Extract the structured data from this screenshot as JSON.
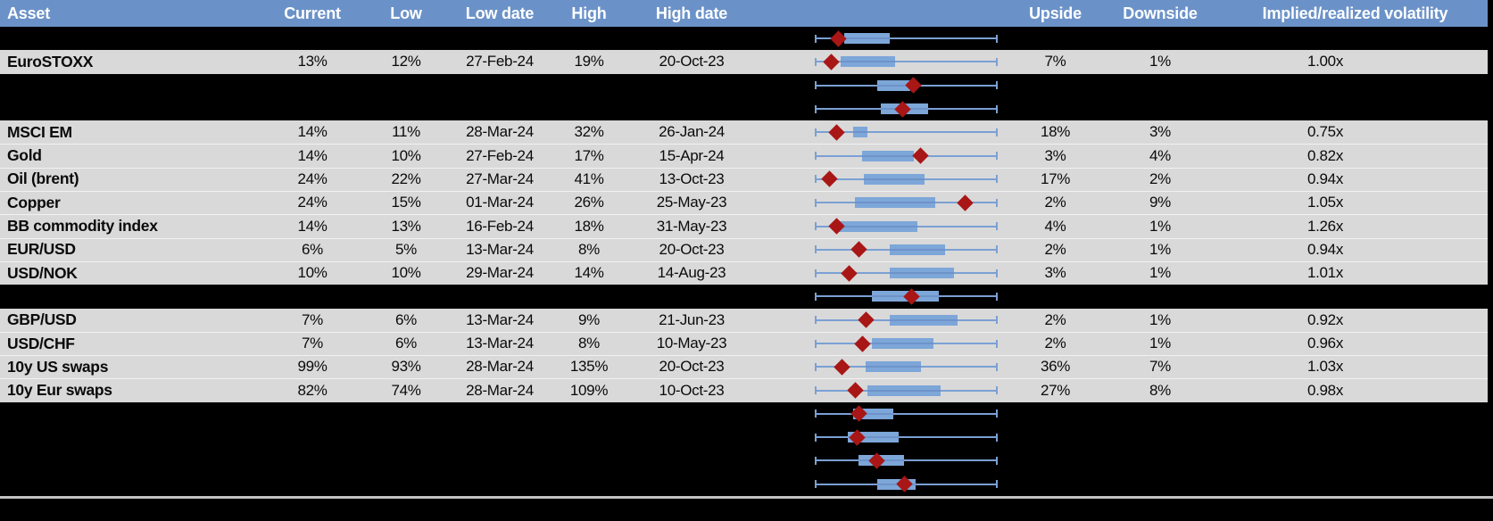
{
  "header": {
    "asset": "Asset",
    "current": "Current",
    "low": "Low",
    "low_date": "Low date",
    "high": "High",
    "high_date": "High date",
    "chart": "",
    "upside": "Upside",
    "downside": "Downside",
    "implied": "Implied/realized volatility"
  },
  "colors": {
    "header_bg": "#6b92c8",
    "header_text": "#ffffff",
    "row_bg": "#d9d9d9",
    "spacer_bg": "#000000",
    "whisker": "#7aa0d4",
    "box_fill": "#7da6d9",
    "box_mid": "#6e93c9",
    "diamond": "#a81616",
    "separator": "#c2c2c2"
  },
  "chart_note": "each row shows a horizontal box-whisker (range 0-1 of 1y vol range) with red diamond = current level",
  "rows": [
    {
      "type": "spacer",
      "box": {
        "lo": 0.16,
        "hi": 0.41,
        "marker": 0.13
      }
    },
    {
      "type": "data",
      "asset": "EuroSTOXX",
      "current": "13%",
      "low": "12%",
      "low_date": "27-Feb-24",
      "high": "19%",
      "high_date": "20-Oct-23",
      "upside": "7%",
      "downside": "1%",
      "implied": "1.00x",
      "box": {
        "lo": 0.14,
        "hi": 0.44,
        "marker": 0.09
      }
    },
    {
      "type": "spacer",
      "box": {
        "lo": 0.34,
        "hi": 0.52,
        "marker": 0.54
      }
    },
    {
      "type": "spacer",
      "box": {
        "lo": 0.36,
        "hi": 0.62,
        "marker": 0.48
      }
    },
    {
      "type": "data",
      "asset": "MSCI EM",
      "current": "14%",
      "low": "11%",
      "low_date": "28-Mar-24",
      "high": "32%",
      "high_date": "26-Jan-24",
      "upside": "18%",
      "downside": "3%",
      "implied": "0.75x",
      "box": {
        "lo": 0.21,
        "hi": 0.29,
        "marker": 0.12
      }
    },
    {
      "type": "data",
      "asset": "Gold",
      "current": "14%",
      "low": "10%",
      "low_date": "27-Feb-24",
      "high": "17%",
      "high_date": "15-Apr-24",
      "upside": "3%",
      "downside": "4%",
      "implied": "0.82x",
      "box": {
        "lo": 0.26,
        "hi": 0.54,
        "marker": 0.58
      }
    },
    {
      "type": "data",
      "asset": "Oil (brent)",
      "current": "24%",
      "low": "22%",
      "low_date": "27-Mar-24",
      "high": "41%",
      "high_date": "13-Oct-23",
      "upside": "17%",
      "downside": "2%",
      "implied": "0.94x",
      "box": {
        "lo": 0.27,
        "hi": 0.6,
        "marker": 0.08
      }
    },
    {
      "type": "data",
      "asset": "Copper",
      "current": "24%",
      "low": "15%",
      "low_date": "01-Mar-24",
      "high": "26%",
      "high_date": "25-May-23",
      "upside": "2%",
      "downside": "9%",
      "implied": "1.05x",
      "box": {
        "lo": 0.22,
        "hi": 0.66,
        "marker": 0.82
      }
    },
    {
      "type": "data",
      "asset": "BB commodity index",
      "current": "14%",
      "low": "13%",
      "low_date": "16-Feb-24",
      "high": "18%",
      "high_date": "31-May-23",
      "upside": "4%",
      "downside": "1%",
      "implied": "1.26x",
      "box": {
        "lo": 0.12,
        "hi": 0.56,
        "marker": 0.12
      }
    },
    {
      "type": "data",
      "asset": "EUR/USD",
      "current": "6%",
      "low": "5%",
      "low_date": "13-Mar-24",
      "high": "8%",
      "high_date": "20-Oct-23",
      "upside": "2%",
      "downside": "1%",
      "implied": "0.94x",
      "box": {
        "lo": 0.41,
        "hi": 0.71,
        "marker": 0.24
      }
    },
    {
      "type": "data",
      "asset": "USD/NOK",
      "current": "10%",
      "low": "10%",
      "low_date": "29-Mar-24",
      "high": "14%",
      "high_date": "14-Aug-23",
      "upside": "3%",
      "downside": "1%",
      "implied": "1.01x",
      "box": {
        "lo": 0.41,
        "hi": 0.76,
        "marker": 0.19
      }
    },
    {
      "type": "spacer",
      "box": {
        "lo": 0.31,
        "hi": 0.68,
        "marker": 0.53
      }
    },
    {
      "type": "data",
      "asset": "GBP/USD",
      "current": "7%",
      "low": "6%",
      "low_date": "13-Mar-24",
      "high": "9%",
      "high_date": "21-Jun-23",
      "upside": "2%",
      "downside": "1%",
      "implied": "0.92x",
      "box": {
        "lo": 0.41,
        "hi": 0.78,
        "marker": 0.28
      }
    },
    {
      "type": "data",
      "asset": "USD/CHF",
      "current": "7%",
      "low": "6%",
      "low_date": "13-Mar-24",
      "high": "8%",
      "high_date": "10-May-23",
      "upside": "2%",
      "downside": "1%",
      "implied": "0.96x",
      "box": {
        "lo": 0.31,
        "hi": 0.65,
        "marker": 0.26
      }
    },
    {
      "type": "data",
      "asset": "10y US swaps",
      "current": "99%",
      "low": "93%",
      "low_date": "28-Mar-24",
      "high": "135%",
      "high_date": "20-Oct-23",
      "upside": "36%",
      "downside": "7%",
      "implied": "1.03x",
      "box": {
        "lo": 0.28,
        "hi": 0.58,
        "marker": 0.15
      }
    },
    {
      "type": "data",
      "asset": "10y Eur swaps",
      "current": "82%",
      "low": "74%",
      "low_date": "28-Mar-24",
      "high": "109%",
      "high_date": "10-Oct-23",
      "upside": "27%",
      "downside": "8%",
      "implied": "0.98x",
      "box": {
        "lo": 0.29,
        "hi": 0.69,
        "marker": 0.22
      }
    },
    {
      "type": "spacer",
      "box": {
        "lo": 0.21,
        "hi": 0.43,
        "marker": 0.24
      }
    },
    {
      "type": "spacer",
      "box": {
        "lo": 0.18,
        "hi": 0.46,
        "marker": 0.23
      }
    },
    {
      "type": "spacer",
      "box": {
        "lo": 0.24,
        "hi": 0.49,
        "marker": 0.34
      }
    },
    {
      "type": "spacer",
      "box": {
        "lo": 0.34,
        "hi": 0.55,
        "marker": 0.49
      }
    }
  ]
}
